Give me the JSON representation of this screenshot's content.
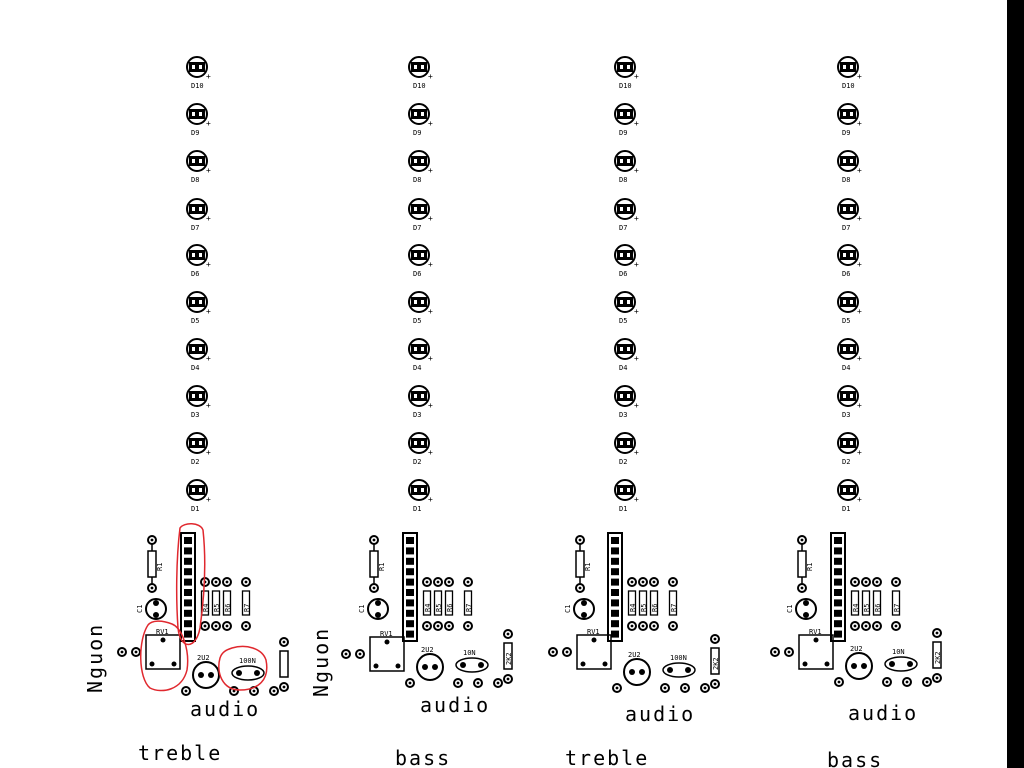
{
  "pcb": {
    "led_labels": [
      "D10",
      "D9",
      "D8",
      "D7",
      "D6",
      "D5",
      "D4",
      "D3",
      "D2",
      "D1"
    ],
    "plus_sign": "+",
    "boards": [
      {
        "r1": "R1",
        "c1": "C1",
        "rv1": "RV1",
        "r4": "R4",
        "r5": "R5",
        "r6": "R6",
        "r7": "R7",
        "cap1": "2U2",
        "cap2": "100N",
        "r_extra": "",
        "power_label": "Nguon",
        "audio_label": "audio",
        "band_label": "treble",
        "highlighted": true
      },
      {
        "r1": "R1",
        "c1": "C1",
        "rv1": "RV1",
        "r4": "R4",
        "r5": "R5",
        "r6": "R6",
        "r7": "R7",
        "cap1": "2U2",
        "cap2": "10N",
        "r_extra": "2K2",
        "power_label": "Nguon",
        "audio_label": "audio",
        "band_label": "bass",
        "highlighted": false
      },
      {
        "r1": "R1",
        "c1": "C1",
        "rv1": "RV1",
        "r4": "R4",
        "r5": "R5",
        "r6": "R6",
        "r7": "R7",
        "cap1": "2U2",
        "cap2": "100N",
        "r_extra": "2K2",
        "power_label": "",
        "audio_label": "audio",
        "band_label": "treble",
        "highlighted": false
      },
      {
        "r1": "R1",
        "c1": "C1",
        "rv1": "RV1",
        "r4": "R4",
        "r5": "R5",
        "r6": "R6",
        "r7": "R7",
        "cap1": "2U2",
        "cap2": "10N",
        "r_extra": "2K2",
        "power_label": "",
        "audio_label": "audio",
        "band_label": "bass",
        "highlighted": false
      }
    ]
  },
  "colors": {
    "ink": "#000000",
    "markup": "#e0282e",
    "paper": "#ffffff",
    "frame": "#000000"
  }
}
